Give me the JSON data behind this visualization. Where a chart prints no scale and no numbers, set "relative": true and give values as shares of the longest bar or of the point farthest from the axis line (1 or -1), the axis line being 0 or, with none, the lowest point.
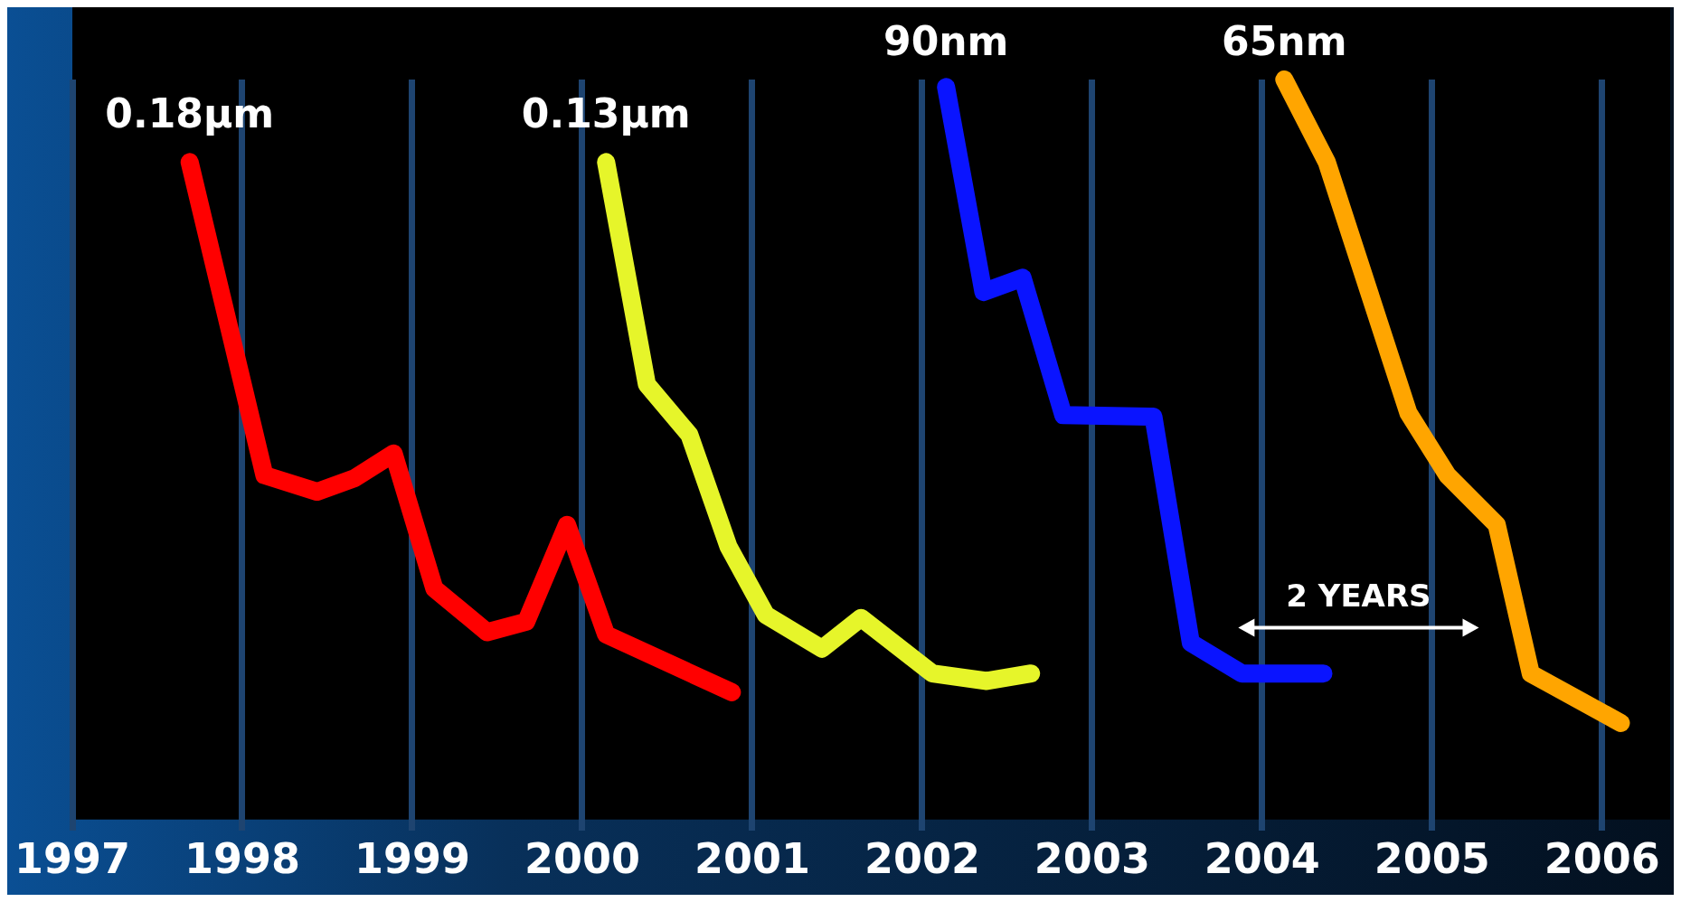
{
  "chart_data": {
    "type": "line",
    "relative": true,
    "xlim": [
      1997,
      2006.4
    ],
    "xticks": [
      1997,
      1998,
      1999,
      2000,
      2001,
      2002,
      2003,
      2004,
      2005,
      2006
    ],
    "grid": "x",
    "legend": false,
    "tick_labels": "x",
    "marker": "none",
    "line_style": "solid",
    "series": [
      {
        "name": "0.18µm",
        "color": "#ff0000",
        "x": [
          1997.69,
          1998.13,
          1998.44,
          1998.66,
          1998.89,
          1999.13,
          1999.44,
          1999.67,
          1999.91,
          2000.14,
          2000.88
        ],
        "values": [
          0.89,
          0.473,
          0.451,
          0.469,
          0.502,
          0.322,
          0.264,
          0.278,
          0.407,
          0.261,
          0.184
        ]
      },
      {
        "name": "0.13µm",
        "color": "#e6f52a",
        "x": [
          2000.14,
          2000.38,
          2000.63,
          2000.86,
          2001.08,
          2001.41,
          2001.64,
          2002.06,
          2002.38,
          2002.64
        ],
        "values": [
          0.89,
          0.594,
          0.527,
          0.378,
          0.287,
          0.242,
          0.283,
          0.209,
          0.199,
          0.209
        ]
      },
      {
        "name": "90nm",
        "color": "#0a14ff",
        "x": [
          2002.14,
          2002.36,
          2002.59,
          2002.83,
          2003.36,
          2003.58,
          2003.88,
          2004.36
        ],
        "values": [
          0.99,
          0.717,
          0.736,
          0.553,
          0.551,
          0.25,
          0.209,
          0.209
        ]
      },
      {
        "name": "65nm",
        "color": "#ffa500",
        "x": [
          2004.13,
          2004.38,
          2004.86,
          2005.09,
          2005.38,
          2005.58,
          2006.11
        ],
        "values": [
          1,
          0.89,
          0.556,
          0.473,
          0.407,
          0.209,
          0.143
        ]
      }
    ],
    "annotations": [
      "2 YEARS"
    ]
  }
}
